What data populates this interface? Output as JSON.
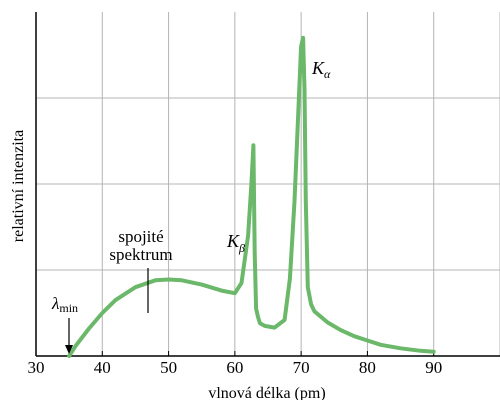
{
  "chart_data": {
    "type": "line",
    "title": "",
    "xlabel": "vlnová délka (pm)",
    "ylabel": "relativní intenzita",
    "xlim": [
      30,
      100
    ],
    "ylim": [
      0,
      4
    ],
    "x_ticks": [
      30,
      40,
      50,
      60,
      70,
      80,
      90
    ],
    "grid": true,
    "line_color": "#6bb86a",
    "series": [
      {
        "x": [
          35,
          36,
          38,
          40,
          42,
          45,
          48,
          50,
          52,
          55,
          58,
          60,
          61,
          62,
          62.5,
          62.8,
          63,
          63.2,
          63.5,
          63.8,
          64.5,
          66,
          67.5,
          68.3,
          69,
          69.5,
          70,
          70.3,
          70.5,
          70.7,
          71,
          71.5,
          72,
          74,
          76,
          78,
          80,
          82,
          85,
          88,
          90
        ],
        "y": [
          0.0,
          0.12,
          0.32,
          0.5,
          0.65,
          0.8,
          0.88,
          0.89,
          0.88,
          0.83,
          0.76,
          0.73,
          0.85,
          1.4,
          2.0,
          2.45,
          1.2,
          0.55,
          0.45,
          0.38,
          0.35,
          0.33,
          0.42,
          0.9,
          1.8,
          2.7,
          3.6,
          3.7,
          3.1,
          1.8,
          0.8,
          0.6,
          0.52,
          0.39,
          0.3,
          0.23,
          0.18,
          0.13,
          0.09,
          0.06,
          0.05
        ]
      }
    ],
    "annotations": {
      "continuous_line1": "spojité",
      "continuous_line2": "spektrum",
      "lambda_symbol": "λ",
      "lambda_sub": "min",
      "k_symbol": "K",
      "k_alpha_sub": "α",
      "k_beta_sub": "β"
    }
  }
}
